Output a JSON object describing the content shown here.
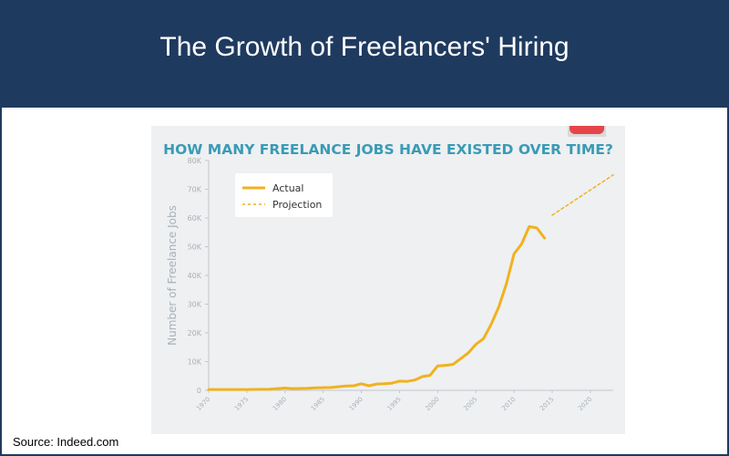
{
  "header": {
    "title": "The Growth of Freelancers' Hiring"
  },
  "footer": {
    "source": "Source: Indeed.com"
  },
  "colors": {
    "header_bg": "#1f3a5f",
    "line": "#f0b21e",
    "chart_title": "#3a9bb5",
    "axis_text": "#a9b0b6",
    "panel_bg": "#eef0f2"
  },
  "chart_data": {
    "type": "line",
    "title": "HOW MANY FREELANCE JOBS HAVE EXISTED OVER TIME?",
    "xlabel": "",
    "ylabel": "Number of Freelance Jobs",
    "xlim": [
      1970,
      2023
    ],
    "ylim": [
      0,
      80000
    ],
    "x_ticks": [
      1970,
      1975,
      1980,
      1985,
      1990,
      1995,
      2000,
      2005,
      2010,
      2015,
      2020
    ],
    "y_ticks": [
      {
        "value": 0,
        "label": "0"
      },
      {
        "value": 10000,
        "label": "10K"
      },
      {
        "value": 20000,
        "label": "20K"
      },
      {
        "value": 30000,
        "label": "30K"
      },
      {
        "value": 40000,
        "label": "40K"
      },
      {
        "value": 50000,
        "label": "50K"
      },
      {
        "value": 60000,
        "label": "60K"
      },
      {
        "value": 70000,
        "label": "70K"
      },
      {
        "value": 80000,
        "label": "80K"
      }
    ],
    "legend_position": "top-left",
    "grid": false,
    "series": [
      {
        "name": "Actual",
        "style": "solid",
        "x": [
          1970,
          1975,
          1978,
          1980,
          1981,
          1983,
          1984,
          1986,
          1988,
          1989,
          1990,
          1991,
          1992,
          1993,
          1994,
          1995,
          1996,
          1997,
          1998,
          1999,
          2000,
          2001,
          2002,
          2003,
          2004,
          2005,
          2006,
          2007,
          2008,
          2009,
          2010,
          2011,
          2012,
          2013,
          2014
        ],
        "y": [
          300,
          300,
          400,
          800,
          600,
          700,
          900,
          1000,
          1500,
          1600,
          2300,
          1600,
          2200,
          2300,
          2500,
          3200,
          3100,
          3600,
          4800,
          5200,
          8500,
          8700,
          9000,
          11000,
          13000,
          16000,
          18000,
          23000,
          29000,
          37000,
          47500,
          51000,
          57000,
          56500,
          53000
        ]
      },
      {
        "name": "Projection",
        "style": "dashed",
        "x": [
          2015,
          2023
        ],
        "y": [
          61000,
          75000
        ]
      }
    ]
  }
}
